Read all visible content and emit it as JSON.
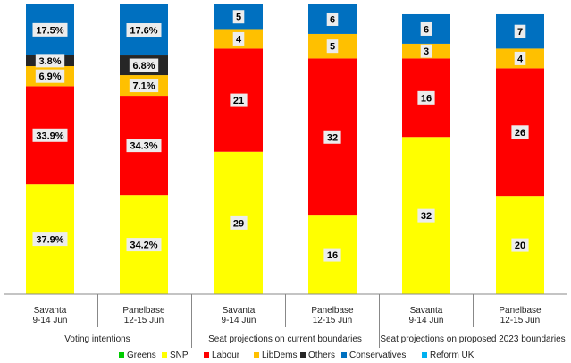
{
  "chart_data": {
    "type": "stacked-bar",
    "title": "",
    "series_order": [
      "Greens",
      "SNP",
      "Labour",
      "LibDems",
      "Others",
      "Conservatives",
      "Reform UK"
    ],
    "colors": {
      "Greens": "#00cc00",
      "SNP": "#ffff00",
      "Labour": "#ff0000",
      "LibDems": "#ffc000",
      "Others": "#262626",
      "Conservatives": "#0070c0",
      "Reform UK": "#00b0f0"
    },
    "groups": [
      {
        "label": "Voting intentions",
        "unit": "%",
        "scale_max": 100,
        "bars": [
          {
            "pollster": "Savanta",
            "dates": "9-14 Jun",
            "values": {
              "SNP": 37.9,
              "Labour": 33.9,
              "LibDems": 6.9,
              "Others": 3.8,
              "Conservatives": 17.5
            },
            "labels": {
              "SNP": "37.9%",
              "Labour": "33.9%",
              "LibDems": "6.9%",
              "Others": "3.8%",
              "Conservatives": "17.5%"
            }
          },
          {
            "pollster": "Panelbase",
            "dates": "12-15 Jun",
            "values": {
              "SNP": 34.2,
              "Labour": 34.3,
              "LibDems": 7.1,
              "Others": 6.8,
              "Conservatives": 17.6
            },
            "labels": {
              "SNP": "34.2%",
              "Labour": "34.3%",
              "LibDems": "7.1%",
              "Others": "6.8%",
              "Conservatives": "17.6%"
            }
          }
        ]
      },
      {
        "label": "Seat projections on current boundaries",
        "unit": "seats",
        "scale_max": 59,
        "bars": [
          {
            "pollster": "Savanta",
            "dates": "9-14 Jun",
            "values": {
              "SNP": 29,
              "Labour": 21,
              "LibDems": 4,
              "Conservatives": 5
            },
            "labels": {
              "SNP": "29",
              "Labour": "21",
              "LibDems": "4",
              "Conservatives": "5"
            }
          },
          {
            "pollster": "Panelbase",
            "dates": "12-15 Jun",
            "values": {
              "SNP": 16,
              "Labour": 32,
              "LibDems": 5,
              "Conservatives": 6
            },
            "labels": {
              "SNP": "16",
              "Labour": "32",
              "LibDems": "5",
              "Conservatives": "6"
            }
          }
        ]
      },
      {
        "label": "Seat projections on proposed 2023 boundaries",
        "unit": "seats",
        "scale_max": 59,
        "bars": [
          {
            "pollster": "Savanta",
            "dates": "9-14 Jun",
            "values": {
              "SNP": 32,
              "Labour": 16,
              "LibDems": 3,
              "Conservatives": 6
            },
            "labels": {
              "SNP": "32",
              "Labour": "16",
              "LibDems": "3",
              "Conservatives": "6"
            }
          },
          {
            "pollster": "Panelbase",
            "dates": "12-15 Jun",
            "values": {
              "SNP": 20,
              "Labour": 26,
              "LibDems": 4,
              "Conservatives": 7
            },
            "labels": {
              "SNP": "20",
              "Labour": "26",
              "LibDems": "4",
              "Conservatives": "7"
            }
          }
        ]
      }
    ],
    "legend": [
      "Greens",
      "SNP",
      "Labour",
      "LibDems",
      "Others",
      "Conservatives",
      "Reform UK"
    ],
    "legend_position": "bottom"
  }
}
